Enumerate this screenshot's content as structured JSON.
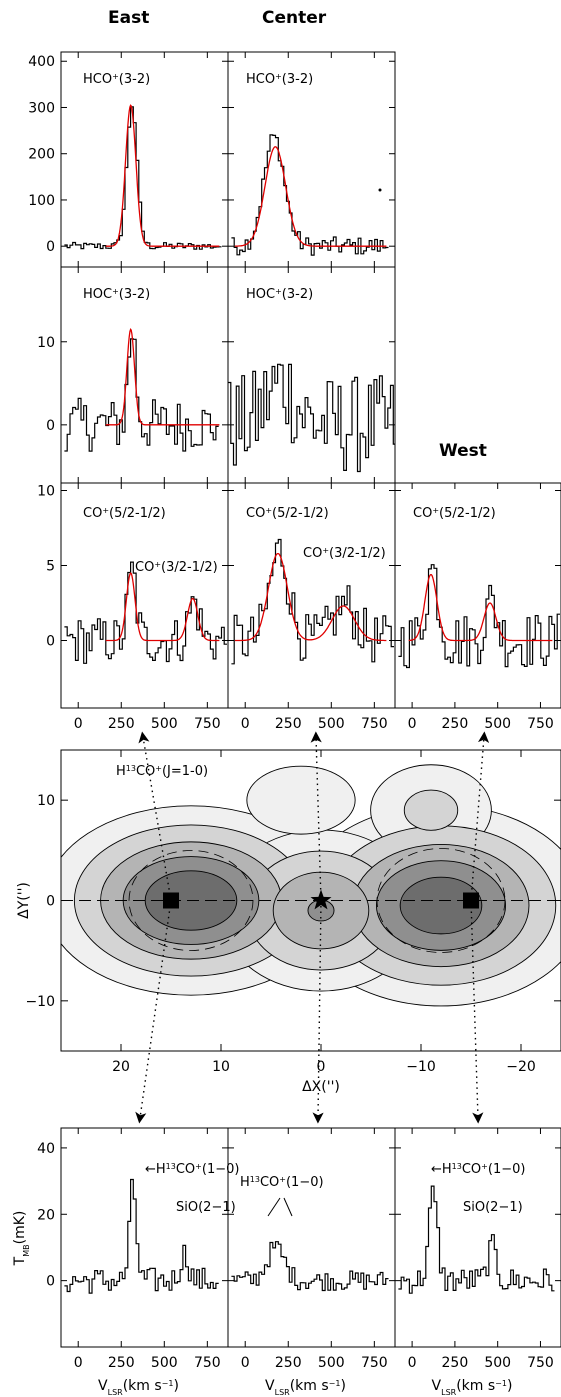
{
  "column_labels": {
    "east": "East",
    "center": "Center",
    "west": "West"
  },
  "colors": {
    "spectrum": "#000000",
    "fit": "#e00000",
    "contour_fill": [
      "#f0f0f0",
      "#d4d4d4",
      "#b4b4b4",
      "#8f8f8f",
      "#6d6d6d"
    ]
  },
  "chart_data": [
    {
      "type": "line",
      "name": "top-spectra-panels",
      "xlim": [
        -100,
        870
      ],
      "xticks": [
        "0",
        "250",
        "500",
        "750"
      ],
      "rows": [
        {
          "ylim": [
            -45,
            420
          ],
          "yticks": [
            "0",
            "100",
            "200",
            "300",
            "400"
          ],
          "panels": [
            {
              "column": "east",
              "line": "HCO",
              "sup": "+",
              "rest": "(3-2)",
              "fit": [
                {
                  "center": 305,
                  "amp": 305,
                  "sigma": 30
                }
              ],
              "peaks": [
                [
                  305,
                  305,
                  30
                ]
              ],
              "noise": 8,
              "x0": -80,
              "x1": 820
            },
            {
              "column": "center",
              "line": "HCO",
              "sup": "+",
              "rest": "(3-2)",
              "fit": [
                {
                  "center": 175,
                  "amp": 215,
                  "sigma": 60
                }
              ],
              "peaks": [
                [
                  160,
                  235,
                  60
                ]
              ],
              "noise": 20,
              "x0": -80,
              "x1": 820
            }
          ]
        },
        {
          "ylim": [
            -7,
            19
          ],
          "yticks": [
            "0",
            "10"
          ],
          "panels": [
            {
              "column": "east",
              "line": "HOC",
              "sup": "+",
              "rest": "(3-2)",
              "fit": [
                {
                  "center": 305,
                  "amp": 11.5,
                  "sigma": 22
                }
              ],
              "peaks": [
                [
                  305,
                  11.5,
                  22
                ]
              ],
              "noise": 3.2,
              "x0": -80,
              "x1": 810
            },
            {
              "column": "center",
              "line": "HOC",
              "sup": "+",
              "rest": "(3-2)",
              "fit": [],
              "peaks": [
                [
                  200,
                  5,
                  80
                ]
              ],
              "noise": 6,
              "x0": -100,
              "x1": 870
            }
          ]
        },
        {
          "ylim": [
            -4.5,
            10.5
          ],
          "yticks": [
            "0",
            "5",
            "10"
          ],
          "panels": [
            {
              "column": "east",
              "line": "CO",
              "sup": "+",
              "rest": "(5/2-1/2)",
              "line2": "CO",
              "sup2": "+",
              "rest2": "(3/2-1/2)",
              "fit": [
                {
                  "center": 305,
                  "amp": 4.5,
                  "sigma": 25
                },
                {
                  "center": 665,
                  "amp": 2.8,
                  "sigma": 30
                }
              ],
              "peaks": [
                [
                  305,
                  4.6,
                  25
                ],
                [
                  665,
                  2.6,
                  30
                ]
              ],
              "noise": 1.6,
              "x0": -80,
              "x1": 860
            },
            {
              "column": "center",
              "line": "CO",
              "sup": "+",
              "rest": "(5/2-1/2)",
              "line2": "CO",
              "sup2": "+",
              "rest2": "(3/2-1/2)",
              "fit": [
                {
                  "center": 190,
                  "amp": 5.8,
                  "sigma": 55
                },
                {
                  "center": 570,
                  "amp": 2.3,
                  "sigma": 65
                }
              ],
              "peaks": [
                [
                  190,
                  6,
                  55
                ],
                [
                  570,
                  2.4,
                  65
                ]
              ],
              "noise": 1.7,
              "x0": -80,
              "x1": 860
            },
            {
              "column": "west",
              "line": "CO",
              "sup": "+",
              "rest": "(5/2-1/2)",
              "fit": [
                {
                  "center": 110,
                  "amp": 4.4,
                  "sigma": 35
                },
                {
                  "center": 455,
                  "amp": 2.5,
                  "sigma": 35
                }
              ],
              "peaks": [
                [
                  110,
                  4.8,
                  35
                ],
                [
                  455,
                  2.5,
                  35
                ]
              ],
              "noise": 1.9,
              "x0": -80,
              "x1": 860
            }
          ]
        }
      ]
    },
    {
      "type": "heatmap",
      "name": "h13co-map",
      "label": "H",
      "label_sup": "13",
      "label_rest": "CO",
      "label_sup2": "+",
      "label_tail": "(J=1-0)",
      "xlabel": "ΔX('')",
      "ylabel": "ΔY('')",
      "xlim": [
        26,
        -24
      ],
      "ylim": [
        -15,
        15
      ],
      "xticks": [
        "20",
        "10",
        "0",
        "−10",
        "−20"
      ],
      "yticks": [
        "10",
        "0",
        "−10"
      ],
      "peaks": [
        {
          "x": 13,
          "y": 0,
          "amp": 1.0,
          "sx": 6.5,
          "sy": 4.2
        },
        {
          "x": -12,
          "y": -0.5,
          "amp": 0.95,
          "sx": 6.5,
          "sy": 4.5
        },
        {
          "x": 0,
          "y": -1,
          "amp": 0.6,
          "sx": 5,
          "sy": 4
        },
        {
          "x": 2,
          "y": 10,
          "amp": 0.2,
          "sx": 4,
          "sy": 2.5
        },
        {
          "x": -11,
          "y": 9,
          "amp": 0.25,
          "sx": 4,
          "sy": 3
        }
      ],
      "markers": [
        {
          "kind": "square",
          "x": 15,
          "y": 0,
          "column": "east"
        },
        {
          "kind": "star",
          "x": 0,
          "y": 0,
          "column": "center"
        },
        {
          "kind": "square",
          "x": -15,
          "y": 0,
          "column": "west"
        }
      ]
    },
    {
      "type": "line",
      "name": "bottom-spectra-panels",
      "xlim": [
        -100,
        870
      ],
      "ylim": [
        -20,
        46
      ],
      "xticks": [
        "0",
        "250",
        "500",
        "750"
      ],
      "yticks": [
        "0",
        "20",
        "40"
      ],
      "ylabel": "T",
      "ylabel_sub": "MB",
      "ylabel_rest": "(mK)",
      "xlabel": "V",
      "xlabel_sub": "LSR",
      "xlabel_rest": "(km s",
      "xlabel_sup": "−1",
      "xlabel_tail": ")",
      "panels": [
        {
          "column": "east",
          "annot1": "←H",
          "a_sup": "13",
          "a_mid": "CO",
          "a_sup2": "+",
          "a_tail": "(1−0)",
          "annot2": "SiO(2−1)",
          "peaks": [
            [
              310,
              28,
              20
            ],
            [
              610,
              8,
              25
            ]
          ],
          "noise": 4,
          "x0": -80,
          "x1": 810
        },
        {
          "column": "center",
          "annot1": "H",
          "a_sup": "13",
          "a_mid": "CO",
          "a_sup2": "+",
          "a_tail": "(1−0)",
          "annot2": "",
          "peaks": [
            [
              170,
              10,
              50
            ]
          ],
          "noise": 3,
          "x0": -80,
          "x1": 830
        },
        {
          "column": "west",
          "annot1": "←H",
          "a_sup": "13",
          "a_mid": "CO",
          "a_sup2": "+",
          "a_tail": "(1−0)",
          "annot2": "SiO(2−1)",
          "peaks": [
            [
              115,
              26,
              25
            ],
            [
              460,
              10,
              25
            ]
          ],
          "noise": 4,
          "x0": -80,
          "x1": 830
        }
      ]
    }
  ]
}
